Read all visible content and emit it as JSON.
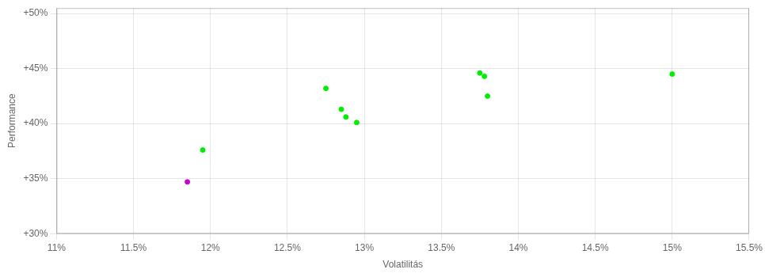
{
  "chart_data": {
    "type": "scatter",
    "xlabel": "Volatilitás",
    "ylabel": "Performance",
    "xlim": [
      0.11,
      0.155
    ],
    "ylim": [
      0.3,
      0.505
    ],
    "xticks": [
      {
        "value": 0.11,
        "label": "11%"
      },
      {
        "value": 0.115,
        "label": "11.5%"
      },
      {
        "value": 0.12,
        "label": "12%"
      },
      {
        "value": 0.125,
        "label": "12.5%"
      },
      {
        "value": 0.13,
        "label": "13%"
      },
      {
        "value": 0.135,
        "label": "13.5%"
      },
      {
        "value": 0.14,
        "label": "14%"
      },
      {
        "value": 0.145,
        "label": "14.5%"
      },
      {
        "value": 0.15,
        "label": "15%"
      },
      {
        "value": 0.155,
        "label": "15.5%"
      }
    ],
    "yticks": [
      {
        "value": 0.3,
        "label": "+30%"
      },
      {
        "value": 0.35,
        "label": "+35%"
      },
      {
        "value": 0.4,
        "label": "+40%"
      },
      {
        "value": 0.45,
        "label": "+45%"
      },
      {
        "value": 0.5,
        "label": "+50%"
      }
    ],
    "grid": true,
    "series": [
      {
        "color": "#00ee00",
        "x": [
          0.1195,
          0.1275,
          0.1285,
          0.1295,
          0.1288,
          0.1375,
          0.1378,
          0.138,
          0.15
        ],
        "values": [
          0.376,
          0.432,
          0.413,
          0.401,
          0.406,
          0.446,
          0.443,
          0.425,
          0.445
        ]
      },
      {
        "color": "#cc00cc",
        "x": [
          0.1185
        ],
        "values": [
          0.347
        ]
      }
    ]
  }
}
